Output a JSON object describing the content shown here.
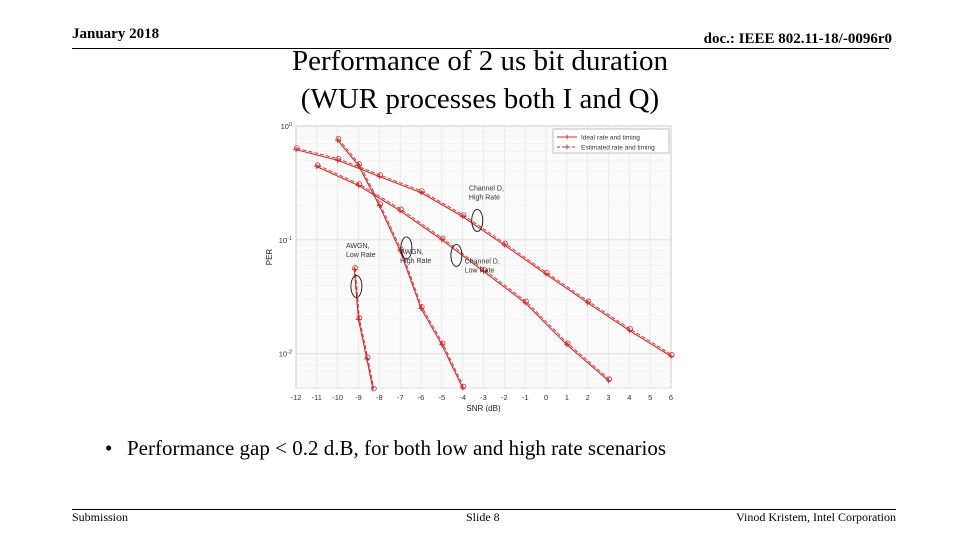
{
  "header": {
    "date": "January 2018",
    "doc": "doc.: IEEE 802.11-18/-0096r0"
  },
  "title": {
    "line1": "Performance of 2 us bit duration",
    "line2": "(WUR processes both I and Q)"
  },
  "chart_data": {
    "type": "line",
    "xlabel": "SNR (dB)",
    "ylabel": "PER",
    "xlim": [
      -12,
      6
    ],
    "ylim": [
      0.005,
      1
    ],
    "yscale": "log",
    "grid": true,
    "legend_position": "top-right",
    "xticks": [
      "-12",
      "-11",
      "-10",
      "-9",
      "-8",
      "-7",
      "-6",
      "-5",
      "-4",
      "-3",
      "-2",
      "-1",
      "0",
      "1",
      "2",
      "3",
      "4",
      "5",
      "6"
    ],
    "yticks": [
      {
        "value": 1,
        "label": "10^0"
      },
      {
        "value": 0.1,
        "label": "10^-1"
      },
      {
        "value": 0.01,
        "label": "10^-2"
      }
    ],
    "legend": [
      {
        "label": "Ideal rate and timing",
        "marker": "+",
        "style": "solid"
      },
      {
        "label": "Estimated rate and timing",
        "marker": "+",
        "style": "dashed"
      }
    ],
    "series": [
      {
        "x": [
          -12,
          -10,
          -8,
          -6,
          -4,
          -2,
          0,
          2,
          4,
          6
        ],
        "y": [
          0.62,
          0.5,
          0.36,
          0.26,
          0.16,
          0.09,
          0.05,
          0.028,
          0.016,
          0.0095
        ]
      },
      {
        "x": [
          -11,
          -9,
          -7,
          -5,
          -3,
          -1,
          1,
          3
        ],
        "y": [
          0.44,
          0.3,
          0.18,
          0.1,
          0.053,
          0.028,
          0.012,
          0.0058
        ]
      },
      {
        "x": [
          -10,
          -9,
          -8,
          -7,
          -6,
          -5,
          -4
        ],
        "y": [
          0.75,
          0.45,
          0.2,
          0.08,
          0.025,
          0.012,
          0.005
        ]
      },
      {
        "x": [
          -9.2,
          -9,
          -8.6,
          -8.3
        ],
        "y": [
          0.055,
          0.02,
          0.009,
          0.0048
        ]
      }
    ],
    "annotations": [
      {
        "text": [
          "Channel D,",
          "High Rate"
        ],
        "x": -3.7,
        "y": 0.27
      },
      {
        "text": [
          "AWGN,",
          "Low Rate"
        ],
        "x": -9.6,
        "y": 0.085
      },
      {
        "text": [
          "AWGN,",
          "High Rate"
        ],
        "x": -7.0,
        "y": 0.075
      },
      {
        "text": [
          "Channel D,",
          "Low Rate"
        ],
        "x": -3.9,
        "y": 0.062
      }
    ],
    "ellipses": [
      {
        "x": -3.3,
        "y": 0.148
      },
      {
        "x": -6.7,
        "y": 0.085
      },
      {
        "x": -4.3,
        "y": 0.073
      },
      {
        "x": -9.1,
        "y": 0.039
      }
    ]
  },
  "bullet": {
    "marker": "•",
    "text": "Performance gap < 0.2 d.B, for both low and high rate scenarios"
  },
  "footer": {
    "left": "Submission",
    "center": "Slide 8",
    "right": "Vinod Kristem, Intel Corporation"
  }
}
